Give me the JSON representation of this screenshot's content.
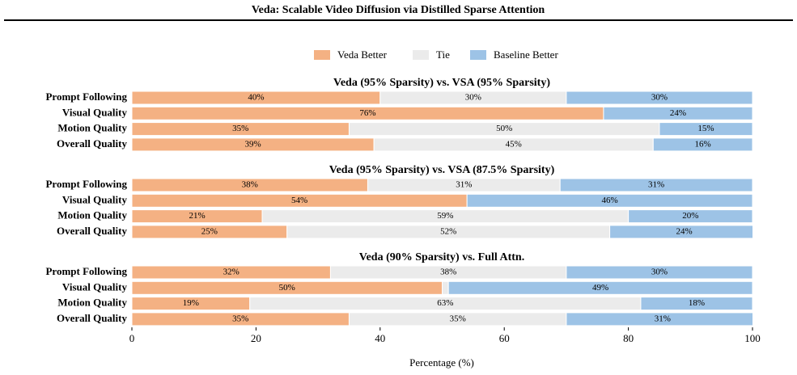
{
  "header": {
    "title": "Veda: Scalable Video Diffusion via Distilled Sparse Attention"
  },
  "chart_data": {
    "type": "stacked-barh",
    "legend": [
      {
        "name": "Veda Better",
        "color": "#f4b183"
      },
      {
        "name": "Tie",
        "color": "#ebebeb"
      },
      {
        "name": "Baseline Better",
        "color": "#9dc3e6"
      }
    ],
    "panels": [
      {
        "title": "Veda (95% Sparsity) vs. VSA (95% Sparsity)",
        "categories": [
          "Prompt Following",
          "Visual Quality",
          "Motion Quality",
          "Overall Quality"
        ],
        "series": [
          {
            "values": [
              40,
              76,
              35,
              39
            ],
            "value_labels": [
              "40%",
              "76%",
              "35%",
              "39%"
            ]
          },
          {
            "values": [
              30,
              0,
              50,
              45
            ],
            "value_labels": [
              "30%",
              null,
              "50%",
              "45%"
            ]
          },
          {
            "values": [
              30,
              24,
              15,
              16
            ],
            "value_labels": [
              "30%",
              "24%",
              "15%",
              "16%"
            ]
          }
        ]
      },
      {
        "title": "Veda (95% Sparsity) vs. VSA (87.5% Sparsity)",
        "categories": [
          "Prompt Following",
          "Visual Quality",
          "Motion Quality",
          "Overall Quality"
        ],
        "series": [
          {
            "values": [
              38,
              54,
              21,
              25
            ],
            "value_labels": [
              "38%",
              "54%",
              "21%",
              "25%"
            ]
          },
          {
            "values": [
              31,
              0,
              59,
              52
            ],
            "value_labels": [
              "31%",
              null,
              "59%",
              "52%"
            ]
          },
          {
            "values": [
              31,
              46,
              20,
              24
            ],
            "value_labels": [
              "31%",
              "46%",
              "20%",
              "24%"
            ]
          }
        ]
      },
      {
        "title": "Veda (90% Sparsity) vs. Full Attn.",
        "categories": [
          "Prompt Following",
          "Visual Quality",
          "Motion Quality",
          "Overall Quality"
        ],
        "series": [
          {
            "values": [
              32,
              50,
              19,
              35
            ],
            "value_labels": [
              "32%",
              "50%",
              "19%",
              "35%"
            ]
          },
          {
            "values": [
              38,
              1,
              63,
              35
            ],
            "value_labels": [
              "38%",
              null,
              "63%",
              "35%"
            ]
          },
          {
            "values": [
              30,
              49,
              18,
              31
            ],
            "value_labels": [
              "30%",
              "49%",
              "18%",
              "31%"
            ]
          }
        ]
      }
    ],
    "xlim": [
      0,
      100
    ],
    "xticks": [
      0,
      20,
      40,
      60,
      80,
      100
    ],
    "xlabel": "Percentage (%)"
  }
}
